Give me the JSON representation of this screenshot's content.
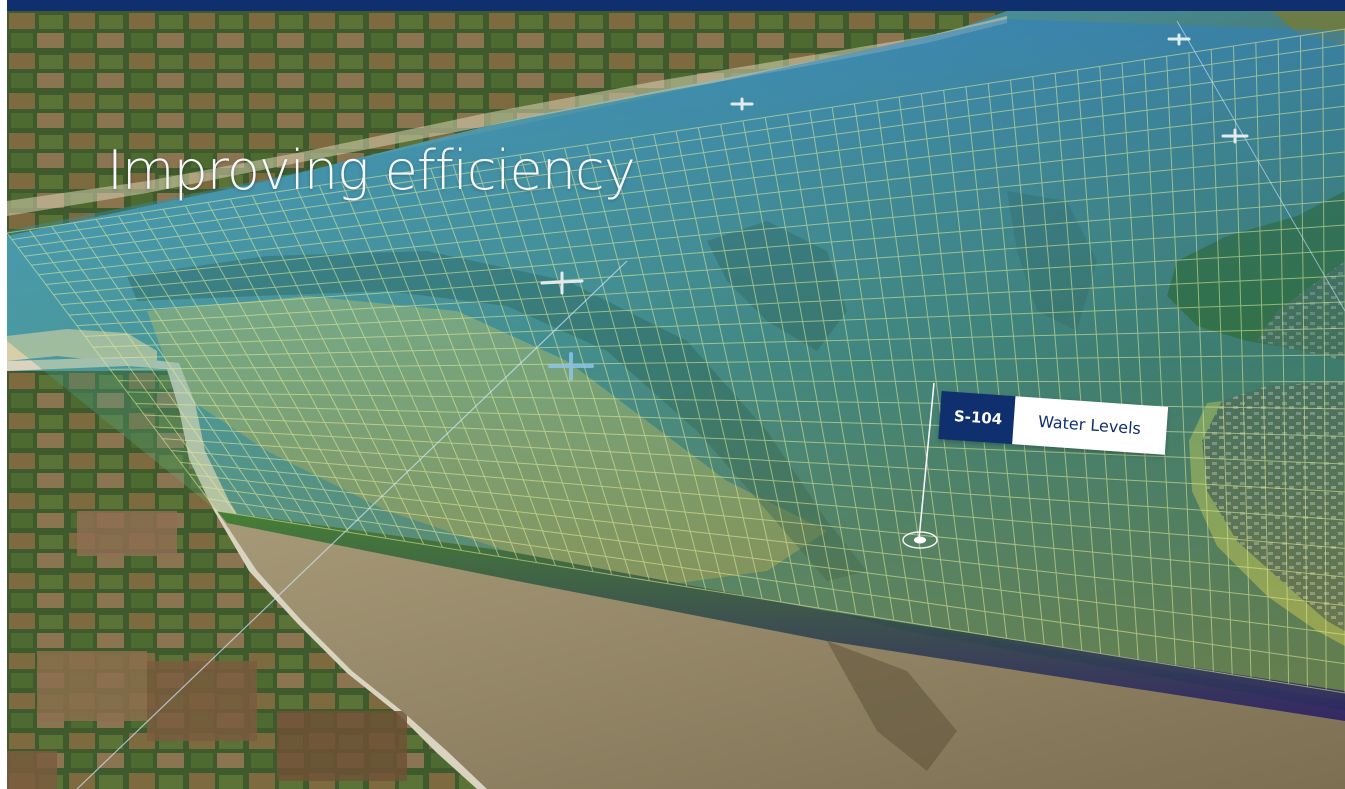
{
  "hero": {
    "headline": "Improving efficiency"
  },
  "marker": {
    "code": "S-104",
    "label": "Water Levels",
    "icon": "location-pin-icon"
  },
  "colors": {
    "brand_navy": "#0f2f6e",
    "text_light": "#f4f7fb",
    "grid_line": "#e8ee9a"
  }
}
